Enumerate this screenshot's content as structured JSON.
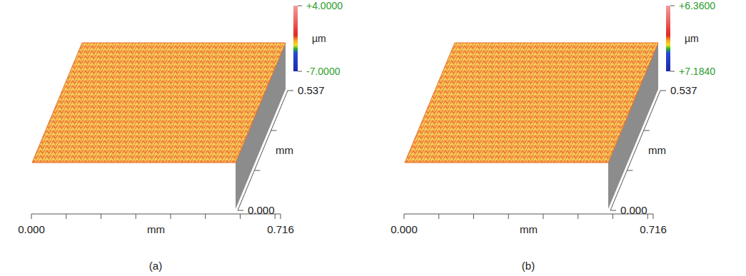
{
  "chart_data": [
    {
      "type": "surface",
      "label": "(a)",
      "xlabel": "mm",
      "xlim": [
        0,
        0.716
      ],
      "xticks": [
        {
          "value": 0,
          "label": "0.000"
        },
        {
          "value": 0.716,
          "label": "0.716"
        }
      ],
      "xminor": [
        0.1,
        0.2,
        0.3,
        0.4,
        0.5,
        0.6,
        0.7
      ],
      "ylabel": "mm",
      "ylim": [
        0,
        0.537
      ],
      "yticks": [
        {
          "value": 0,
          "label": "0.000"
        },
        {
          "value": 0.537,
          "label": "0.537"
        }
      ],
      "yminor": [
        0.179,
        0.358
      ],
      "colorbar": {
        "label": "µm",
        "lim": [
          -7,
          4
        ],
        "ticks": [
          {
            "value": 4,
            "label": "+4.0000"
          },
          {
            "value": -7,
            "label": "-7.0000"
          }
        ]
      }
    },
    {
      "type": "surface",
      "label": "(b)",
      "xlabel": "mm",
      "xlim": [
        0,
        0.716
      ],
      "xticks": [
        {
          "value": 0,
          "label": "0.000"
        },
        {
          "value": 0.716,
          "label": "0.716"
        }
      ],
      "xminor": [
        0.1,
        0.2,
        0.3,
        0.4,
        0.5,
        0.6,
        0.7
      ],
      "ylabel": "mm",
      "ylim": [
        0,
        0.537
      ],
      "yticks": [
        {
          "value": 0,
          "label": "0.000"
        },
        {
          "value": 0.537,
          "label": "0.537"
        }
      ],
      "yminor": [
        0.179,
        0.358
      ],
      "colorbar": {
        "label": "µm",
        "lim": [
          7.184,
          6.36
        ],
        "ticks": [
          {
            "value": 6.36,
            "label": "+6.3600"
          },
          {
            "value": 7.184,
            "label": "+7.1840"
          }
        ]
      }
    }
  ]
}
